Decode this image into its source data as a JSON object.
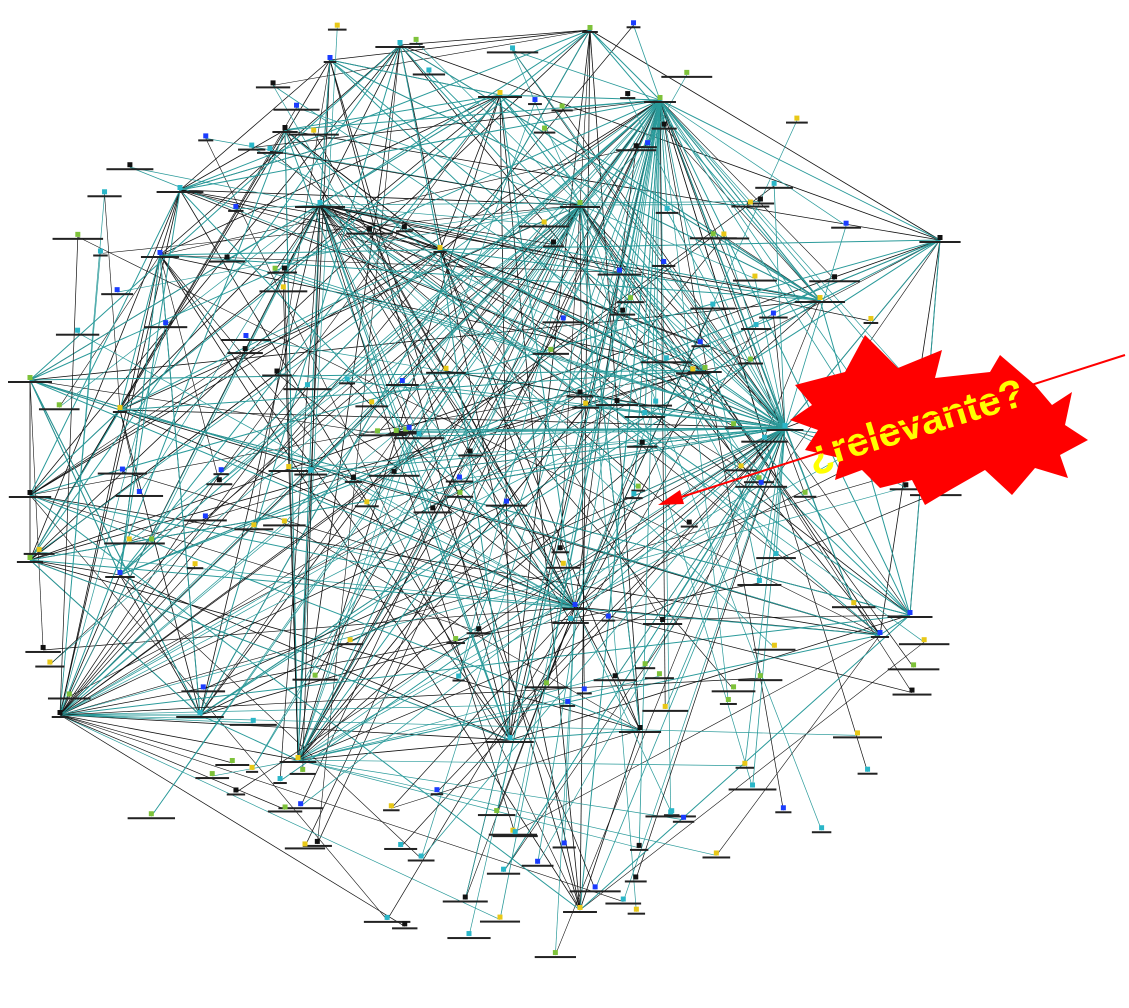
{
  "callout": {
    "text": "¿relevante?",
    "burst_color": "#ff0000",
    "text_color": "#ffff00",
    "arrow_color": "#ff0000"
  },
  "colors": {
    "background": "#ffffff",
    "black_edge": "#111111",
    "teal_edge": "#2a9a9a",
    "node_green": "#7ec23a",
    "node_cyan": "#2ab6c8",
    "node_blue": "#1a3cff",
    "node_yellow": "#e8c817"
  }
}
